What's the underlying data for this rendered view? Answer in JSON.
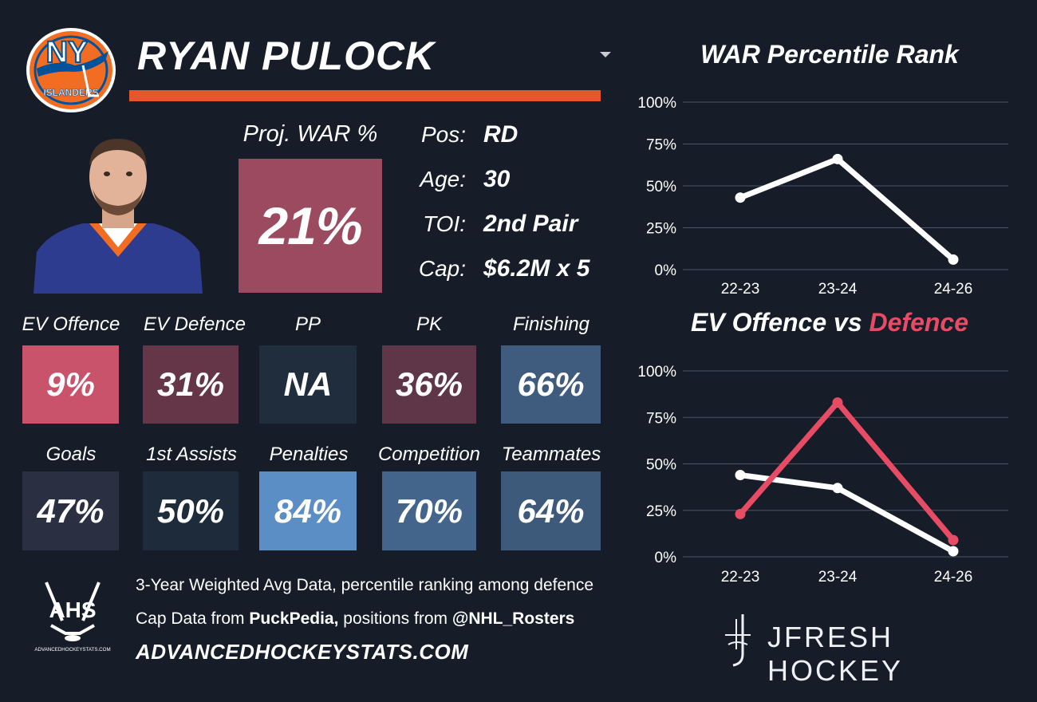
{
  "team_logo": {
    "text_top": "NY",
    "text_bottom": "ISLANDERS"
  },
  "player": {
    "name": "RYAN PULOCK",
    "proj_war_label": "Proj. WAR %",
    "proj_war_value": "21%",
    "info": [
      {
        "key": "Pos:",
        "value": "RD"
      },
      {
        "key": "Age:",
        "value": "30"
      },
      {
        "key": "TOI:",
        "value": "2nd Pair"
      },
      {
        "key": "Cap:",
        "value": "$6.2M x 5"
      }
    ]
  },
  "metrics_row1": [
    {
      "label": "EV Offence",
      "value": "9%",
      "color": "#c8536a"
    },
    {
      "label": "EV Defence",
      "value": "31%",
      "color": "#653548"
    },
    {
      "label": "PP",
      "value": "NA",
      "color": "#1f2d3d"
    },
    {
      "label": "PK",
      "value": "36%",
      "color": "#5e3648"
    },
    {
      "label": "Finishing",
      "value": "66%",
      "color": "#3f5c7e"
    }
  ],
  "metrics_row2": [
    {
      "label": "Goals",
      "value": "47%",
      "color": "#2a2f42"
    },
    {
      "label": "1st Assists",
      "value": "50%",
      "color": "#1d2b3b"
    },
    {
      "label": "Penalties",
      "value": "84%",
      "color": "#5b8ec4"
    },
    {
      "label": "Competition",
      "value": "70%",
      "color": "#44658b"
    },
    {
      "label": "Teammates",
      "value": "64%",
      "color": "#3e5a7a"
    }
  ],
  "footer": {
    "ahs_logo_text": "AHS",
    "ahs_logo_sub": "ADVANCEDHOCKEYSTATS.COM",
    "line1": "3-Year Weighted Avg Data, percentile ranking among defence",
    "line2_prefix": "Cap Data from ",
    "line2_bold1": "PuckPedia,",
    "line2_mid": " positions from ",
    "line2_bold2": "@NHL_Rosters",
    "url": "ADVANCEDHOCKEYSTATS.COM"
  },
  "branding": {
    "jfresh": "JFRESH HOCKEY"
  },
  "colors": {
    "accent_orange": "#e4572b",
    "background": "#161d29",
    "defence_red": "#e84c64"
  },
  "chart_data": [
    {
      "type": "line",
      "title": "WAR Percentile Rank",
      "categories": [
        "22-23",
        "23-24",
        "24-26"
      ],
      "series": [
        {
          "values": [
            43,
            66,
            6
          ],
          "color": "#ffffff"
        }
      ],
      "ylim": [
        0,
        100
      ],
      "yticks": [
        "0%",
        "25%",
        "50%",
        "75%",
        "100%"
      ],
      "grid": true
    },
    {
      "type": "line",
      "title_part1": "EV Offence vs ",
      "title_part2": "Defence",
      "categories": [
        "22-23",
        "23-24",
        "24-26"
      ],
      "series": [
        {
          "values": [
            44,
            37,
            3
          ],
          "color": "#ffffff"
        },
        {
          "values": [
            23,
            83,
            9
          ],
          "color": "#e84c64"
        }
      ],
      "ylim": [
        0,
        100
      ],
      "yticks": [
        "0%",
        "25%",
        "50%",
        "75%",
        "100%"
      ],
      "grid": true
    }
  ]
}
